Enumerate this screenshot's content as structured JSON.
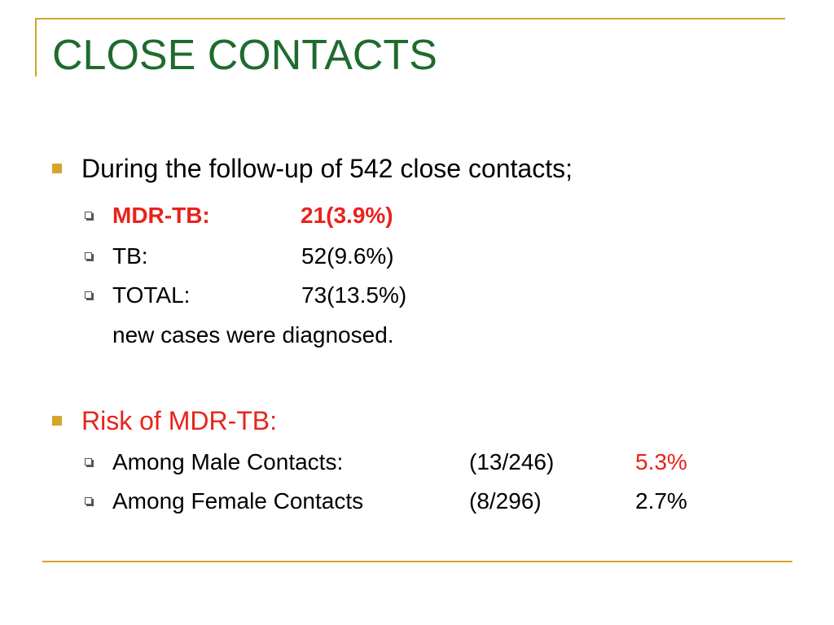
{
  "slide": {
    "title": "CLOSE CONTACTS",
    "colors": {
      "title": "#1e6b2e",
      "accent_rule": "#d4a52b",
      "highlight_red": "#e8231c"
    },
    "section1": {
      "bullet_text": "During the follow-up of 542 close contacts;",
      "items": [
        {
          "label": "MDR-TB:",
          "value": "21(3.9%)"
        },
        {
          "label": "TB:",
          "value": "52(9.6%)"
        },
        {
          "label": "TOTAL:",
          "value": "73(13.5%)"
        }
      ],
      "note": "new cases were diagnosed."
    },
    "section2": {
      "bullet_text": "Risk of MDR-TB:",
      "items": [
        {
          "label": "Among Male Contacts:",
          "ratio": "(13/246)",
          "percent": "5.3%"
        },
        {
          "label": "Among Female Contacts",
          "ratio": "(8/296)",
          "percent": "2.7%"
        }
      ]
    }
  }
}
